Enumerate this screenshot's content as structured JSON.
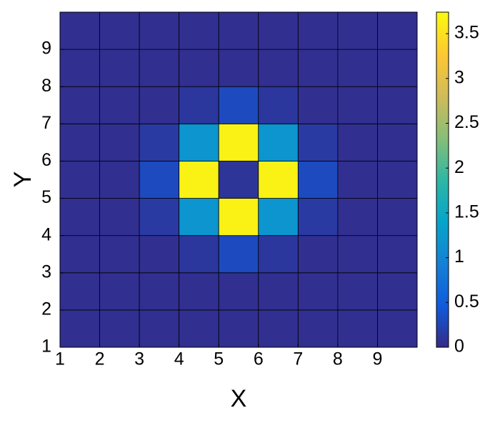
{
  "chart_data": {
    "type": "heatmap",
    "xlabel": "X",
    "ylabel": "Y",
    "xlim": [
      1,
      10
    ],
    "ylim": [
      1,
      10
    ],
    "xticks": [
      1,
      2,
      3,
      4,
      5,
      6,
      7,
      8,
      9
    ],
    "yticks": [
      1,
      2,
      3,
      4,
      5,
      6,
      7,
      8,
      9
    ],
    "z": [
      [
        0.05,
        0.05,
        0.05,
        0.05,
        0.05,
        0.05,
        0.05,
        0.05,
        0.05
      ],
      [
        0.05,
        0.05,
        0.05,
        0.05,
        0.05,
        0.05,
        0.05,
        0.05,
        0.05
      ],
      [
        0.05,
        0.05,
        0.05,
        0.12,
        0.3,
        0.12,
        0.05,
        0.05,
        0.05
      ],
      [
        0.05,
        0.05,
        0.15,
        1.2,
        3.65,
        1.2,
        0.15,
        0.05,
        0.05
      ],
      [
        0.05,
        0.05,
        0.3,
        3.65,
        0.1,
        3.65,
        0.3,
        0.05,
        0.05
      ],
      [
        0.05,
        0.05,
        0.15,
        1.2,
        3.65,
        1.2,
        0.15,
        0.05,
        0.05
      ],
      [
        0.05,
        0.05,
        0.05,
        0.12,
        0.3,
        0.12,
        0.05,
        0.05,
        0.05
      ],
      [
        0.05,
        0.05,
        0.05,
        0.05,
        0.05,
        0.05,
        0.05,
        0.05,
        0.05
      ],
      [
        0.05,
        0.05,
        0.05,
        0.05,
        0.05,
        0.05,
        0.05,
        0.05,
        0.05
      ]
    ],
    "clim": [
      0,
      3.74
    ],
    "cticks": [
      0,
      0.5,
      1,
      1.5,
      2,
      2.5,
      3,
      3.5
    ],
    "colormap": [
      "#352a87",
      "#0f5cdd",
      "#1481d6",
      "#06a4ca",
      "#2eb7a4",
      "#87bf77",
      "#d1bb59",
      "#fec832",
      "#f9fb0e"
    ],
    "edgecolor": "#000000"
  }
}
